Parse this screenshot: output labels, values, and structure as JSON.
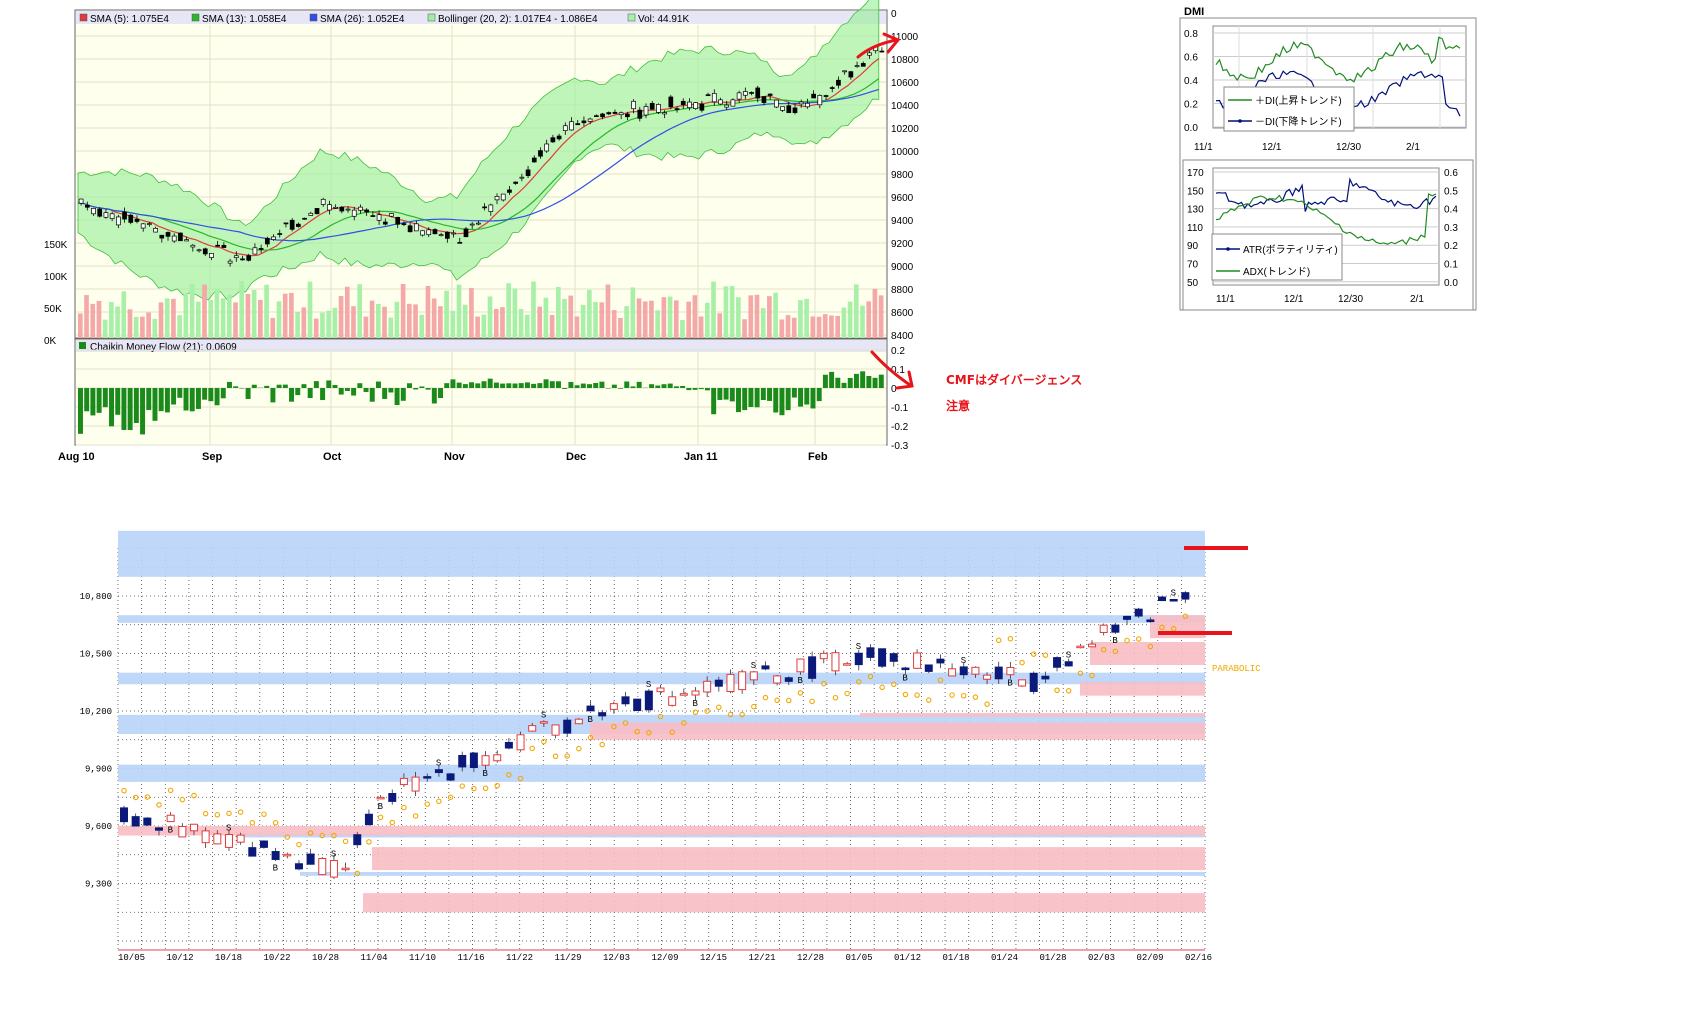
{
  "colors": {
    "up_body": "#ffffff",
    "up_line": "#e23b3b",
    "down_body": "#0b1a7a",
    "band_fill": "#9df09d",
    "band_line": "#3fbf3f",
    "panel_bg": "#ffffee",
    "sma5": "#e23b3b",
    "sma13": "#28b828",
    "sma26": "#2f4fe6",
    "cmf": "#1a8a1a",
    "vol_up": "#a8f0a8",
    "vol_down": "#f4a8a8",
    "zone_blue": "#b8d4f8",
    "zone_pink": "#f8bcc4",
    "parabolic": "#f0a800",
    "annotation": "#e8141b",
    "dmi_plus": "#228b22",
    "dmi_minus": "#00107a"
  },
  "top_chart": {
    "legend": [
      {
        "label": "SMA (5): 1.075E4",
        "color": "#e23b3b"
      },
      {
        "label": "SMA (13): 1.058E4",
        "color": "#28b828"
      },
      {
        "label": "SMA (26): 1.052E4",
        "color": "#2f4fe6"
      },
      {
        "label": "Bollinger (20, 2): 1.017E4 - 1.086E4",
        "color": "#9df09d"
      },
      {
        "label": "Vol: 44.91K",
        "color": "#a8f0a8"
      }
    ],
    "price_axis": [
      "0",
      "11000",
      "10800",
      "10600",
      "10400",
      "10200",
      "10000",
      "9800",
      "9600",
      "9400",
      "9200",
      "9000",
      "8800",
      "8600",
      "8400"
    ],
    "volume_axis": [
      "150K",
      "100K",
      "50K",
      "0K"
    ],
    "cmf_legend": "Chaikin Money Flow (21): 0.0609",
    "cmf_axis": [
      "0.2",
      "0.1",
      "0",
      "-0.1",
      "-0.2",
      "-0.3"
    ],
    "x_labels": [
      "Aug 10",
      "Sep",
      "Oct",
      "Nov",
      "Dec",
      "Jan 11",
      "Feb"
    ]
  },
  "annotation": {
    "line1": "CMFはダイバージェンス",
    "line2": "注意"
  },
  "dmi": {
    "title": "DMI",
    "axis": [
      "0.8",
      "0.6",
      "0.4",
      "0.2",
      "0.0"
    ],
    "legend_plus": "＋DI(上昇トレンド)",
    "legend_minus": "－DI(下降トレンド)",
    "x_labels": [
      "11/1",
      "12/1",
      "12/30",
      "2/1"
    ]
  },
  "atr": {
    "left_axis": [
      "170",
      "150",
      "130",
      "110",
      "90",
      "70",
      "50"
    ],
    "right_axis": [
      "0.6",
      "0.5",
      "0.4",
      "0.3",
      "0.2",
      "0.1",
      "0.0"
    ],
    "legend_atr": "ATR(ボラティリティ)",
    "legend_adx": "ADX(トレンド)",
    "x_labels": [
      "11/1",
      "12/1",
      "12/30",
      "2/1"
    ]
  },
  "bottom_chart": {
    "y_axis": [
      "10,800",
      "10,500",
      "10,200",
      "9,900",
      "9,600",
      "9,300"
    ],
    "x_labels": [
      "10/05",
      "10/12",
      "10/18",
      "10/22",
      "10/28",
      "11/04",
      "11/10",
      "11/16",
      "11/22",
      "11/29",
      "12/03",
      "12/09",
      "12/15",
      "12/21",
      "12/28",
      "01/05",
      "01/12",
      "01/18",
      "01/24",
      "01/28",
      "02/03",
      "02/09",
      "02/16"
    ],
    "parabolic_label": "PARABOLIC",
    "signal_s": "S",
    "signal_b": "B"
  }
}
